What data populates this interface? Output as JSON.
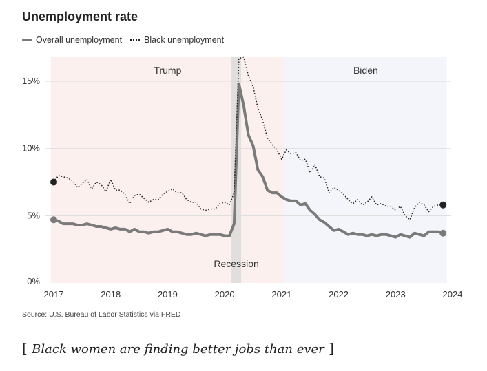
{
  "title": "Unemployment rate",
  "legend": {
    "overall": "Overall unemployment",
    "black": "Black unemployment"
  },
  "source": "Source: U.S. Bureau of Labor Statistics via FRED",
  "related": {
    "open": "[",
    "link": "Black women are finding better jobs than ever",
    "close": "]"
  },
  "colors": {
    "overall": "#7a7a7a",
    "black": "#222222",
    "trump_bg": "#fbf0ee",
    "biden_bg": "#f3f5fa",
    "recession_bg": "#e2dedd"
  },
  "chart_data": {
    "type": "line",
    "title": "Unemployment rate",
    "xlabel": "",
    "ylabel": "",
    "xlim": [
      2017,
      2024
    ],
    "ylim": [
      0,
      16.8
    ],
    "x_start": 2017.0,
    "x_step_months": 1,
    "x_ticks": [
      "2017",
      "2018",
      "2019",
      "2020",
      "2021",
      "2022",
      "2023",
      "2024"
    ],
    "y_ticks": [
      {
        "value": 0,
        "label": "0%"
      },
      {
        "value": 5,
        "label": "5%"
      },
      {
        "value": 10,
        "label": "10%"
      },
      {
        "value": 15,
        "label": "15%"
      }
    ],
    "grid": true,
    "legend_position": "top-left",
    "series": [
      {
        "name": "Overall unemployment",
        "style": "solid",
        "values": [
          4.7,
          4.6,
          4.4,
          4.4,
          4.4,
          4.3,
          4.3,
          4.4,
          4.3,
          4.2,
          4.2,
          4.1,
          4.0,
          4.1,
          4.0,
          4.0,
          3.8,
          4.0,
          3.8,
          3.8,
          3.7,
          3.8,
          3.8,
          3.9,
          4.0,
          3.8,
          3.8,
          3.7,
          3.6,
          3.6,
          3.7,
          3.6,
          3.5,
          3.6,
          3.6,
          3.6,
          3.5,
          3.5,
          4.4,
          14.8,
          13.2,
          11.0,
          10.2,
          8.4,
          7.9,
          6.9,
          6.7,
          6.7,
          6.4,
          6.2,
          6.1,
          6.1,
          5.8,
          5.9,
          5.4,
          5.1,
          4.7,
          4.5,
          4.2,
          3.9,
          4.0,
          3.8,
          3.6,
          3.7,
          3.6,
          3.6,
          3.5,
          3.6,
          3.5,
          3.6,
          3.6,
          3.5,
          3.4,
          3.6,
          3.5,
          3.4,
          3.7,
          3.6,
          3.5,
          3.8,
          3.8,
          3.8,
          3.7
        ]
      },
      {
        "name": "Black unemployment",
        "style": "dotted",
        "values": [
          7.5,
          8.0,
          7.9,
          7.8,
          7.6,
          7.1,
          7.4,
          7.7,
          7.0,
          7.5,
          7.3,
          6.8,
          7.7,
          6.9,
          6.9,
          6.6,
          5.9,
          6.5,
          6.6,
          6.3,
          6.0,
          6.2,
          6.2,
          6.6,
          6.8,
          7.0,
          6.7,
          6.7,
          6.2,
          6.0,
          6.0,
          5.5,
          5.4,
          5.5,
          5.5,
          5.9,
          6.0,
          5.8,
          6.7,
          16.7,
          16.8,
          15.4,
          14.6,
          13.0,
          12.1,
          10.8,
          10.3,
          9.9,
          9.2,
          9.9,
          9.6,
          9.7,
          9.1,
          9.2,
          8.2,
          8.8,
          7.9,
          7.8,
          6.7,
          7.1,
          6.9,
          6.6,
          6.2,
          5.9,
          6.2,
          5.8,
          6.0,
          6.4,
          5.8,
          5.9,
          5.7,
          5.7,
          5.4,
          5.7,
          5.0,
          4.7,
          5.6,
          6.0,
          5.8,
          5.3,
          5.7,
          5.8,
          5.8
        ]
      }
    ],
    "periods": [
      {
        "label": "Trump",
        "start": 2016.95,
        "end": 2021.05
      },
      {
        "label": "Recession",
        "start": 2020.12,
        "end": 2020.29
      },
      {
        "label": "Biden",
        "start": 2021.05,
        "end": 2023.9
      }
    ]
  }
}
